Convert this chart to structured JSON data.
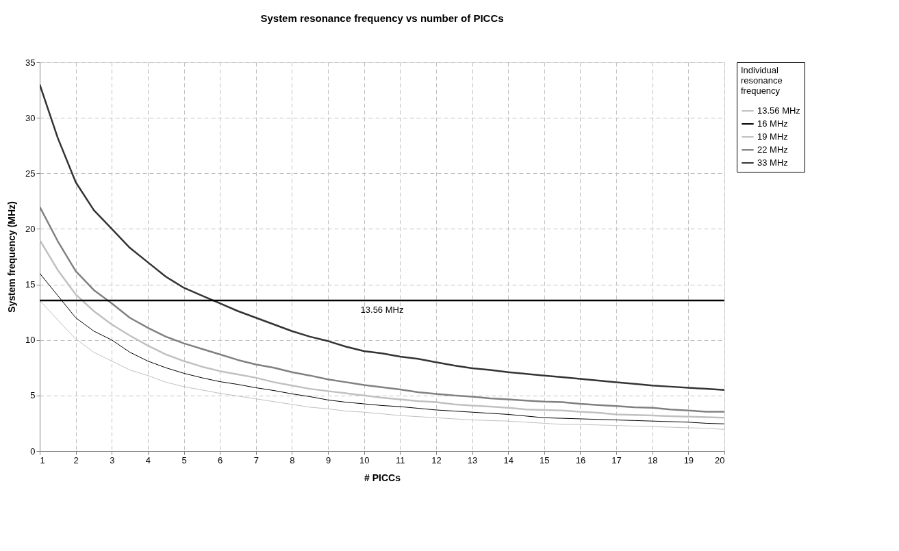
{
  "chart_data": {
    "type": "line",
    "title": "System resonance frequency vs number of PICCs",
    "xlabel": "# PICCs",
    "ylabel": "System frequency (MHz)",
    "legend_title": "Individual resonance frequency",
    "x": [
      1,
      1.5,
      2,
      2.5,
      3,
      3.5,
      4,
      4.5,
      5,
      5.5,
      6,
      6.5,
      7,
      7.5,
      8,
      8.5,
      9,
      9.5,
      10,
      10.5,
      11,
      11.5,
      12,
      12.5,
      13,
      13.5,
      14,
      14.5,
      15,
      15.5,
      16,
      16.5,
      17,
      17.5,
      18,
      18.5,
      19,
      19.5,
      20
    ],
    "series": [
      {
        "name": "13.56 MHz",
        "color": "#c0c0c0",
        "values": [
          13.56,
          11.8,
          10.1,
          8.9,
          8.1,
          7.3,
          6.8,
          6.2,
          5.8,
          5.5,
          5.2,
          4.95,
          4.7,
          4.45,
          4.2,
          3.95,
          3.8,
          3.6,
          3.5,
          3.35,
          3.2,
          3.1,
          3.0,
          2.9,
          2.8,
          2.75,
          2.7,
          2.6,
          2.5,
          2.4,
          2.4,
          2.35,
          2.3,
          2.25,
          2.2,
          2.15,
          2.1,
          2.05,
          1.95
        ]
      },
      {
        "name": "16 MHz",
        "color": "#000000",
        "values": [
          16.0,
          14.0,
          12.0,
          10.8,
          10.0,
          8.9,
          8.1,
          7.5,
          7.0,
          6.6,
          6.25,
          6.0,
          5.7,
          5.45,
          5.15,
          4.9,
          4.6,
          4.4,
          4.25,
          4.1,
          4.0,
          3.85,
          3.7,
          3.6,
          3.5,
          3.4,
          3.3,
          3.15,
          3.0,
          2.95,
          2.9,
          2.85,
          2.8,
          2.75,
          2.7,
          2.65,
          2.6,
          2.5,
          2.45
        ]
      },
      {
        "name": "19 MHz",
        "color": "#c0c0c0",
        "values": [
          19.0,
          16.3,
          14.1,
          12.6,
          11.4,
          10.4,
          9.5,
          8.7,
          8.1,
          7.6,
          7.2,
          6.9,
          6.6,
          6.2,
          5.9,
          5.6,
          5.4,
          5.2,
          5.0,
          4.8,
          4.65,
          4.5,
          4.4,
          4.2,
          4.1,
          4.0,
          3.9,
          3.75,
          3.7,
          3.65,
          3.55,
          3.45,
          3.3,
          3.25,
          3.2,
          3.15,
          3.1,
          3.05,
          3.0
        ]
      },
      {
        "name": "22 MHz",
        "color": "#808080",
        "values": [
          22.0,
          18.9,
          16.2,
          14.5,
          13.3,
          12.0,
          11.1,
          10.3,
          9.7,
          9.2,
          8.7,
          8.2,
          7.8,
          7.5,
          7.1,
          6.8,
          6.45,
          6.2,
          5.95,
          5.75,
          5.55,
          5.3,
          5.15,
          5.0,
          4.9,
          4.75,
          4.65,
          4.55,
          4.45,
          4.4,
          4.25,
          4.15,
          4.05,
          3.95,
          3.9,
          3.75,
          3.65,
          3.55,
          3.55
        ]
      },
      {
        "name": "33 MHz",
        "color": "#333333",
        "values": [
          33.0,
          28.2,
          24.2,
          21.7,
          20.0,
          18.3,
          17.0,
          15.7,
          14.7,
          14.0,
          13.3,
          12.6,
          12.0,
          11.4,
          10.8,
          10.3,
          9.9,
          9.4,
          9.0,
          8.8,
          8.5,
          8.3,
          8.0,
          7.7,
          7.45,
          7.3,
          7.1,
          6.95,
          6.8,
          6.65,
          6.5,
          6.35,
          6.2,
          6.05,
          5.9,
          5.8,
          5.7,
          5.6,
          5.5
        ]
      }
    ],
    "ref_lines": [
      {
        "axis": "y",
        "value": 13.56,
        "label": "13.56 MHz",
        "color": "#000000"
      }
    ],
    "xlim": [
      1,
      20
    ],
    "xticks": [
      1,
      2,
      3,
      4,
      5,
      6,
      7,
      8,
      9,
      10,
      11,
      12,
      13,
      14,
      15,
      16,
      17,
      18,
      19,
      20
    ],
    "ylim": [
      0,
      35
    ],
    "yticks": [
      0,
      5,
      10,
      15,
      20,
      25,
      30,
      35
    ],
    "grid": true,
    "legend": "right",
    "marker": "none",
    "line_style": "solid"
  }
}
